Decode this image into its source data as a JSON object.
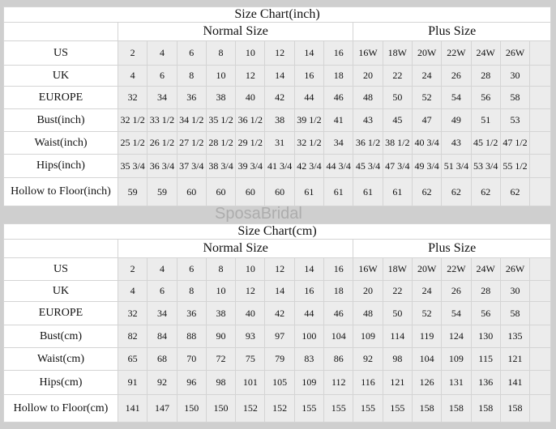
{
  "watermark": "SposaBridal",
  "charts": [
    {
      "title": "Size Chart(inch)",
      "normal_label": "Normal Size",
      "plus_label": "Plus Size",
      "rows": [
        {
          "label": "US",
          "values": [
            "2",
            "4",
            "6",
            "8",
            "10",
            "12",
            "14",
            "16",
            "16W",
            "18W",
            "20W",
            "22W",
            "24W",
            "26W"
          ]
        },
        {
          "label": "UK",
          "values": [
            "4",
            "6",
            "8",
            "10",
            "12",
            "14",
            "16",
            "18",
            "20",
            "22",
            "24",
            "26",
            "28",
            "30"
          ]
        },
        {
          "label": "EUROPE",
          "values": [
            "32",
            "34",
            "36",
            "38",
            "40",
            "42",
            "44",
            "46",
            "48",
            "50",
            "52",
            "54",
            "56",
            "58"
          ]
        },
        {
          "label": "Bust(inch)",
          "values": [
            "32 1/2",
            "33 1/2",
            "34 1/2",
            "35 1/2",
            "36 1/2",
            "38",
            "39 1/2",
            "41",
            "43",
            "45",
            "47",
            "49",
            "51",
            "53"
          ]
        },
        {
          "label": "Waist(inch)",
          "values": [
            "25 1/2",
            "26 1/2",
            "27 1/2",
            "28 1/2",
            "29 1/2",
            "31",
            "32 1/2",
            "34",
            "36 1/2",
            "38 1/2",
            "40 3/4",
            "43",
            "45 1/2",
            "47 1/2"
          ]
        },
        {
          "label": "Hips(inch)",
          "values": [
            "35 3/4",
            "36 3/4",
            "37 3/4",
            "38 3/4",
            "39 3/4",
            "41 3/4",
            "42 3/4",
            "44 3/4",
            "45 3/4",
            "47 3/4",
            "49 3/4",
            "51 3/4",
            "53 3/4",
            "55 1/2"
          ]
        },
        {
          "label": "Hollow to Floor(inch)",
          "values": [
            "59",
            "59",
            "60",
            "60",
            "60",
            "60",
            "61",
            "61",
            "61",
            "61",
            "62",
            "62",
            "62",
            "62"
          ]
        }
      ]
    },
    {
      "title": "Size Chart(cm)",
      "normal_label": "Normal Size",
      "plus_label": "Plus Size",
      "rows": [
        {
          "label": "US",
          "values": [
            "2",
            "4",
            "6",
            "8",
            "10",
            "12",
            "14",
            "16",
            "16W",
            "18W",
            "20W",
            "22W",
            "24W",
            "26W"
          ]
        },
        {
          "label": "UK",
          "values": [
            "4",
            "6",
            "8",
            "10",
            "12",
            "14",
            "16",
            "18",
            "20",
            "22",
            "24",
            "26",
            "28",
            "30"
          ]
        },
        {
          "label": "EUROPE",
          "values": [
            "32",
            "34",
            "36",
            "38",
            "40",
            "42",
            "44",
            "46",
            "48",
            "50",
            "52",
            "54",
            "56",
            "58"
          ]
        },
        {
          "label": "Bust(cm)",
          "values": [
            "82",
            "84",
            "88",
            "90",
            "93",
            "97",
            "100",
            "104",
            "109",
            "114",
            "119",
            "124",
            "130",
            "135"
          ]
        },
        {
          "label": "Waist(cm)",
          "values": [
            "65",
            "68",
            "70",
            "72",
            "75",
            "79",
            "83",
            "86",
            "92",
            "98",
            "104",
            "109",
            "115",
            "121"
          ]
        },
        {
          "label": "Hips(cm)",
          "values": [
            "91",
            "92",
            "96",
            "98",
            "101",
            "105",
            "109",
            "112",
            "116",
            "121",
            "126",
            "131",
            "136",
            "141"
          ]
        },
        {
          "label": "Hollow to Floor(cm)",
          "values": [
            "141",
            "147",
            "150",
            "150",
            "152",
            "152",
            "155",
            "155",
            "155",
            "155",
            "158",
            "158",
            "158",
            "158"
          ]
        }
      ]
    }
  ]
}
